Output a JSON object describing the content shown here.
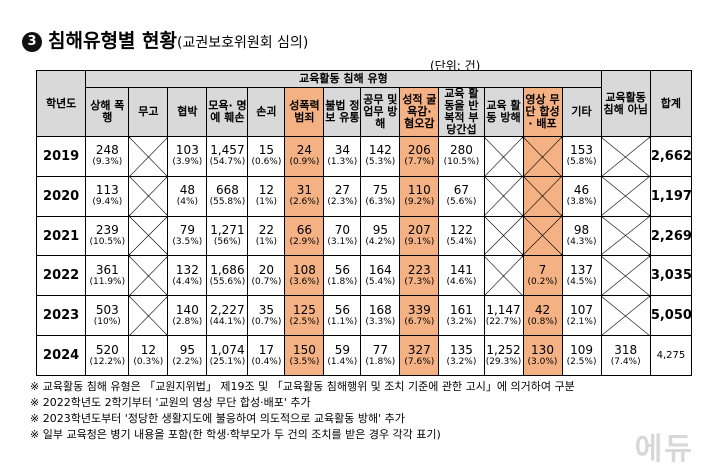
{
  "title": {
    "number": "3",
    "main": "침해유형별 현황",
    "sub": "(교권보호위원회 심의)"
  },
  "unit": "(단위: 건)",
  "headers": {
    "year": "학년도",
    "group": "교육활동 침해 유형",
    "cols": [
      "상해 폭행",
      "무고",
      "협박",
      "모욕· 명예 훼손",
      "손괴",
      "성폭력 범죄",
      "불법 정보 유통",
      "공무 및 업무 방해",
      "성적 굴욕감· 혐오감",
      "교육 활동을 반복적 부당간섭",
      "교육 활동 방해",
      "영상 무단 합성· 배포",
      "기타"
    ],
    "non_infringement": "교육활동 침해 아님",
    "total": "합계"
  },
  "highlight_cols": [
    5,
    8,
    11
  ],
  "rows": [
    {
      "year": "2019",
      "cells": [
        [
          "248",
          "(9.3%)"
        ],
        null,
        [
          "103",
          "(3.9%)"
        ],
        [
          "1,457",
          "(54.7%)"
        ],
        [
          "15",
          "(0.6%)"
        ],
        [
          "24",
          "(0.9%)"
        ],
        [
          "34",
          "(1.3%)"
        ],
        [
          "142",
          "(5.3%)"
        ],
        [
          "206",
          "(7.7%)"
        ],
        [
          "280",
          "(10.5%)"
        ],
        null,
        null,
        [
          "153",
          "(5.8%)"
        ]
      ],
      "non": null,
      "total": "2,662"
    },
    {
      "year": "2020",
      "cells": [
        [
          "113",
          "(9.4%)"
        ],
        null,
        [
          "48",
          "(4%)"
        ],
        [
          "668",
          "(55.8%)"
        ],
        [
          "12",
          "(1%)"
        ],
        [
          "31",
          "(2.6%)"
        ],
        [
          "27",
          "(2.3%)"
        ],
        [
          "75",
          "(6.3%)"
        ],
        [
          "110",
          "(9.2%)"
        ],
        [
          "67",
          "(5.6%)"
        ],
        null,
        null,
        [
          "46",
          "(3.8%)"
        ]
      ],
      "non": null,
      "total": "1,197"
    },
    {
      "year": "2021",
      "cells": [
        [
          "239",
          "(10.5%)"
        ],
        null,
        [
          "79",
          "(3.5%)"
        ],
        [
          "1,271",
          "(56%)"
        ],
        [
          "22",
          "(1%)"
        ],
        [
          "66",
          "(2.9%)"
        ],
        [
          "70",
          "(3.1%)"
        ],
        [
          "95",
          "(4.2%)"
        ],
        [
          "207",
          "(9.1%)"
        ],
        [
          "122",
          "(5.4%)"
        ],
        null,
        null,
        [
          "98",
          "(4.3%)"
        ]
      ],
      "non": null,
      "total": "2,269"
    },
    {
      "year": "2022",
      "cells": [
        [
          "361",
          "(11.9%)"
        ],
        null,
        [
          "132",
          "(4.4%)"
        ],
        [
          "1,686",
          "(55.6%)"
        ],
        [
          "20",
          "(0.7%)"
        ],
        [
          "108",
          "(3.6%)"
        ],
        [
          "56",
          "(1.8%)"
        ],
        [
          "164",
          "(5.4%)"
        ],
        [
          "223",
          "(7.3%)"
        ],
        [
          "141",
          "(4.6%)"
        ],
        null,
        [
          "7",
          "(0.2%)"
        ],
        [
          "137",
          "(4.5%)"
        ]
      ],
      "non": null,
      "total": "3,035"
    },
    {
      "year": "2023",
      "cells": [
        [
          "503",
          "(10%)"
        ],
        null,
        [
          "140",
          "(2.8%)"
        ],
        [
          "2,227",
          "(44.1%)"
        ],
        [
          "35",
          "(0.7%)"
        ],
        [
          "125",
          "(2.5%)"
        ],
        [
          "56",
          "(1.1%)"
        ],
        [
          "168",
          "(3.3%)"
        ],
        [
          "339",
          "(6.7%)"
        ],
        [
          "161",
          "(3.2%)"
        ],
        [
          "1,147",
          "(22.7%)"
        ],
        [
          "42",
          "(0.8%)"
        ],
        [
          "107",
          "(2.1%)"
        ]
      ],
      "non": null,
      "total": "5,050"
    },
    {
      "year": "2024",
      "cells": [
        [
          "520",
          "(12.2%)"
        ],
        [
          "12",
          "(0.3%)"
        ],
        [
          "95",
          "(2.2%)"
        ],
        [
          "1,074",
          "(25.1%)"
        ],
        [
          "17",
          "(0.4%)"
        ],
        [
          "150",
          "(3.5%)"
        ],
        [
          "59",
          "(1.4%)"
        ],
        [
          "77",
          "(1.8%)"
        ],
        [
          "327",
          "(7.6%)"
        ],
        [
          "135",
          "(3.2%)"
        ],
        [
          "1,252",
          "(29.3%)"
        ],
        [
          "130",
          "(3.0%)"
        ],
        [
          "109",
          "(2.5%)"
        ]
      ],
      "non": [
        "318",
        "(7.4%)"
      ],
      "total": "4,275"
    }
  ],
  "notes": [
    "※ 교육활동 침해 유형은 「교원지위법」 제19조 및 「교육활동 침해행위 및 조치 기준에 관한 고시」에 의거하여 구분",
    "※ 2022학년도 2학기부터 '교원의 영상 무단 합성·배포' 추가",
    "※ 2023학년도부터 '정당한 생활지도에 불응하여 의도적으로 교육활동 방해' 추가",
    "※ 일부 교육청은 병기 내용을 포함(한 학생·학부모가 두 건의 조치를 받은 경우 각각 표기)"
  ],
  "watermark": "에듀"
}
